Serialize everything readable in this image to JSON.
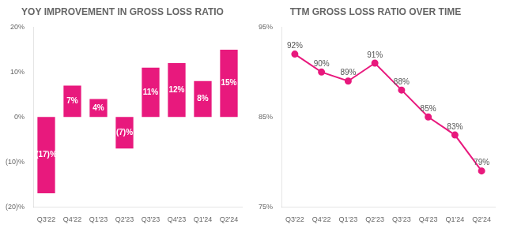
{
  "chart_data": [
    {
      "type": "bar",
      "title": "YOY IMPROVEMENT IN GROSS LOSS RATIO",
      "categories": [
        "Q3'22",
        "Q4'22",
        "Q1'23",
        "Q2'23",
        "Q3'23",
        "Q4'23",
        "Q1'24",
        "Q2'24"
      ],
      "values": [
        -17,
        7,
        4,
        -7,
        11,
        12,
        8,
        15
      ],
      "value_labels": [
        "(17)%",
        "7%",
        "4%",
        "(7)%",
        "11%",
        "12%",
        "8%",
        "15%"
      ],
      "data_labels": true,
      "color": "#e8197d",
      "ylim": [
        -20,
        20
      ],
      "yticks": [
        {
          "value": -20,
          "label": "(20)%"
        },
        {
          "value": -10,
          "label": "(10)%"
        },
        {
          "value": 0,
          "label": "0%"
        },
        {
          "value": 10,
          "label": "10%"
        },
        {
          "value": 20,
          "label": "20%"
        }
      ],
      "grid": false
    },
    {
      "type": "line",
      "title": "TTM GROSS LOSS RATIO OVER TIME",
      "categories": [
        "Q3'22",
        "Q4'22",
        "Q1'23",
        "Q2'23",
        "Q3'23",
        "Q4'23",
        "Q1'24",
        "Q2'24"
      ],
      "values": [
        92,
        90,
        89,
        91,
        88,
        85,
        83,
        79
      ],
      "value_labels": [
        "92%",
        "90%",
        "89%",
        "91%",
        "88%",
        "85%",
        "83%",
        "79%"
      ],
      "data_labels": true,
      "color": "#e8197d",
      "marker": "circle",
      "ylim": [
        75,
        95
      ],
      "yticks": [
        {
          "value": 75,
          "label": "75%"
        },
        {
          "value": 85,
          "label": "85%"
        },
        {
          "value": 95,
          "label": "95%"
        }
      ],
      "grid": false
    }
  ]
}
